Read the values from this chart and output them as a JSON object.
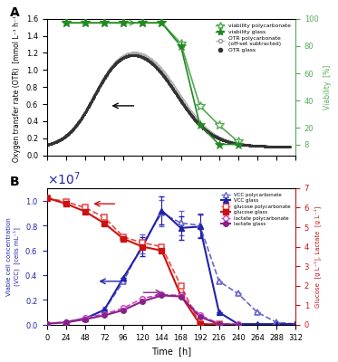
{
  "panel_A": {
    "viability_poly_time": [
      24,
      48,
      72,
      96,
      120,
      144,
      168,
      192,
      216,
      240
    ],
    "viability_poly": [
      97,
      97,
      97,
      97,
      97,
      97,
      82,
      36,
      22,
      10
    ],
    "viability_glass_time": [
      24,
      48,
      72,
      96,
      120,
      144,
      168,
      192,
      216,
      240
    ],
    "viability_glass": [
      97,
      97,
      97,
      97,
      97,
      97,
      80,
      22,
      8,
      8
    ],
    "ylim_otr": [
      0.0,
      1.6
    ],
    "ylim_viability": [
      0,
      100
    ],
    "ylabel_left": "Oxygen transfer rate (OTR)  [mmol L⁻¹ h⁻¹]",
    "ylabel_right": "Viability  [%]"
  },
  "panel_B": {
    "vcc_poly_time": [
      24,
      48,
      72,
      96,
      120,
      144,
      168,
      192,
      216,
      240,
      264,
      288,
      312
    ],
    "vcc_poly": [
      200000,
      500000,
      1200000,
      3500000,
      6500000,
      9000000,
      8200000,
      8000000,
      3500000,
      2500000,
      1000000,
      200000,
      50000
    ],
    "vcc_poly_err": [
      0,
      0,
      0,
      0,
      780000,
      1080000,
      984000,
      960000,
      0,
      0,
      0,
      0,
      0
    ],
    "vcc_glass_time": [
      24,
      48,
      72,
      96,
      120,
      144,
      168,
      192,
      216,
      240,
      264,
      288,
      312
    ],
    "vcc_glass": [
      200000,
      500000,
      1200000,
      3800000,
      6300000,
      9200000,
      7800000,
      7900000,
      1000000,
      50000,
      50000,
      50000,
      50000
    ],
    "vcc_glass_err": [
      0,
      0,
      0,
      0,
      756000,
      1104000,
      936000,
      948000,
      0,
      0,
      0,
      0,
      0
    ],
    "glucose_poly_time": [
      0,
      24,
      48,
      72,
      96,
      120,
      144,
      168,
      192,
      216
    ],
    "glucose_poly": [
      6.5,
      6.3,
      6.0,
      5.5,
      4.5,
      4.2,
      4.0,
      2.0,
      0.05,
      0.02
    ],
    "glucose_glass_time": [
      0,
      24,
      48,
      72,
      96,
      120,
      144,
      168,
      192,
      216
    ],
    "glucose_glass": [
      6.5,
      6.2,
      5.8,
      5.2,
      4.4,
      4.0,
      3.8,
      1.5,
      0.03,
      0.01
    ],
    "lactate_poly_time": [
      0,
      24,
      48,
      72,
      96,
      120,
      144,
      168,
      192,
      216,
      240
    ],
    "lactate_poly": [
      0.05,
      0.15,
      0.35,
      0.55,
      0.85,
      1.35,
      1.55,
      1.5,
      0.5,
      0.05,
      0.02
    ],
    "lactate_glass_time": [
      0,
      24,
      48,
      72,
      96,
      120,
      144,
      168,
      192,
      216,
      240
    ],
    "lactate_glass": [
      0.05,
      0.12,
      0.28,
      0.48,
      0.75,
      1.2,
      1.5,
      1.45,
      0.4,
      0.03,
      0.01
    ],
    "ylim_vcc": [
      0,
      11000000.0
    ],
    "ylim_glucose": [
      0,
      7
    ],
    "yticks_vcc": [
      0,
      2000000,
      4000000,
      6000000,
      8000000,
      10000000
    ],
    "yticks_glucose": [
      0,
      1,
      2,
      3,
      4,
      5,
      6,
      7
    ],
    "ylabel_left": "Viable cell concentration\n(VCC)  [cells mL⁻¹]",
    "ylabel_right": "Glucose  [g L⁻¹], Lactate  [g L⁻¹]"
  },
  "xticks": [
    0,
    24,
    48,
    72,
    96,
    120,
    144,
    168,
    192,
    216,
    240,
    264,
    288,
    312
  ],
  "xlabel": "Time  [h]",
  "color_otr_glass": "#333333",
  "color_otr_poly": "#999999",
  "color_viability_poly": "#55aa55",
  "color_viability_glass": "#228822",
  "color_vcc_poly": "#6666cc",
  "color_vcc_glass": "#2222aa",
  "color_glucose_poly": "#ee4444",
  "color_glucose_glass": "#cc1111",
  "color_lactate_poly": "#cc44cc",
  "color_lactate_glass": "#882288"
}
